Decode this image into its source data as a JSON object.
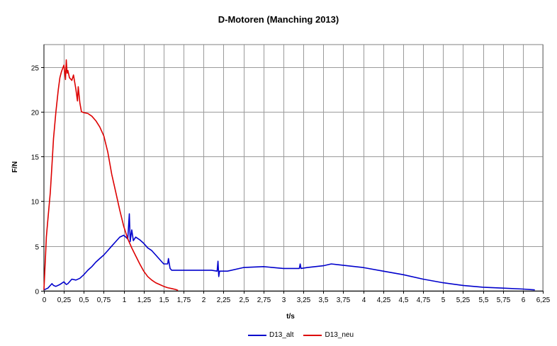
{
  "chart_data": {
    "type": "line",
    "title": "D-Motoren (Manching 2013)",
    "xlabel": "t/s",
    "ylabel": "F/N",
    "xlim": [
      0,
      6.25
    ],
    "ylim": [
      0,
      27.5
    ],
    "x_ticks": [
      "0",
      "0,25",
      "0,5",
      "0,75",
      "1",
      "1,25",
      "1,5",
      "1,75",
      "2",
      "2,25",
      "2,5",
      "2,75",
      "3",
      "3,25",
      "3,5",
      "3,75",
      "4",
      "4,25",
      "4,5",
      "4,75",
      "5",
      "5,25",
      "5,5",
      "5,75",
      "6",
      "6,25"
    ],
    "y_ticks": [
      "0",
      "5",
      "10",
      "15",
      "20",
      "25"
    ],
    "grid": true,
    "legend_position": "bottom",
    "series": [
      {
        "name": "D13_alt",
        "color": "#0000cc",
        "x": [
          0,
          0.05,
          0.1,
          0.12,
          0.15,
          0.2,
          0.25,
          0.28,
          0.3,
          0.35,
          0.4,
          0.45,
          0.5,
          0.55,
          0.6,
          0.65,
          0.7,
          0.75,
          0.8,
          0.85,
          0.9,
          0.95,
          1.0,
          1.05,
          1.07,
          1.08,
          1.1,
          1.12,
          1.15,
          1.2,
          1.25,
          1.3,
          1.35,
          1.4,
          1.5,
          1.55,
          1.56,
          1.58,
          1.6,
          1.7,
          1.8,
          1.9,
          2.0,
          2.1,
          2.17,
          2.18,
          2.19,
          2.2,
          2.3,
          2.5,
          2.75,
          3.0,
          3.2,
          3.21,
          3.22,
          3.3,
          3.5,
          3.6,
          3.7,
          4.0,
          4.25,
          4.5,
          4.75,
          5.0,
          5.25,
          5.5,
          5.75,
          6.0,
          6.15
        ],
        "y": [
          0.1,
          0.3,
          0.8,
          0.6,
          0.5,
          0.7,
          1.0,
          0.7,
          0.8,
          1.3,
          1.2,
          1.4,
          1.8,
          2.3,
          2.7,
          3.2,
          3.6,
          4.0,
          4.5,
          5.0,
          5.5,
          6.0,
          6.2,
          5.8,
          8.6,
          5.5,
          6.8,
          5.6,
          6.0,
          5.7,
          5.3,
          4.8,
          4.5,
          4.0,
          3.0,
          3.0,
          3.6,
          2.5,
          2.3,
          2.3,
          2.3,
          2.3,
          2.3,
          2.3,
          2.2,
          3.3,
          1.6,
          2.2,
          2.2,
          2.6,
          2.7,
          2.5,
          2.5,
          3.0,
          2.5,
          2.6,
          2.8,
          3.0,
          2.9,
          2.6,
          2.2,
          1.8,
          1.3,
          0.9,
          0.6,
          0.4,
          0.3,
          0.2,
          0.1
        ]
      },
      {
        "name": "D13_neu",
        "color": "#dd0000",
        "x": [
          0,
          0.01,
          0.02,
          0.03,
          0.05,
          0.08,
          0.1,
          0.12,
          0.15,
          0.18,
          0.2,
          0.22,
          0.25,
          0.27,
          0.28,
          0.29,
          0.3,
          0.32,
          0.35,
          0.37,
          0.4,
          0.42,
          0.43,
          0.45,
          0.47,
          0.5,
          0.55,
          0.6,
          0.65,
          0.7,
          0.75,
          0.8,
          0.85,
          0.9,
          0.95,
          1.0,
          1.05,
          1.1,
          1.15,
          1.2,
          1.25,
          1.3,
          1.35,
          1.4,
          1.45,
          1.5,
          1.55,
          1.6,
          1.65,
          1.68
        ],
        "y": [
          0.1,
          2,
          4,
          6,
          8,
          11,
          14,
          17,
          20,
          22.5,
          23.8,
          24.5,
          25.2,
          23.6,
          25.8,
          24.3,
          24.6,
          23.8,
          23.5,
          24.1,
          22.5,
          21.2,
          22.8,
          21.0,
          20.0,
          19.9,
          19.8,
          19.5,
          19.0,
          18.3,
          17.3,
          15.5,
          13.0,
          11.0,
          9.0,
          7.2,
          5.8,
          4.8,
          3.9,
          3.0,
          2.2,
          1.6,
          1.2,
          0.9,
          0.7,
          0.5,
          0.35,
          0.25,
          0.15,
          0.05
        ]
      }
    ]
  }
}
